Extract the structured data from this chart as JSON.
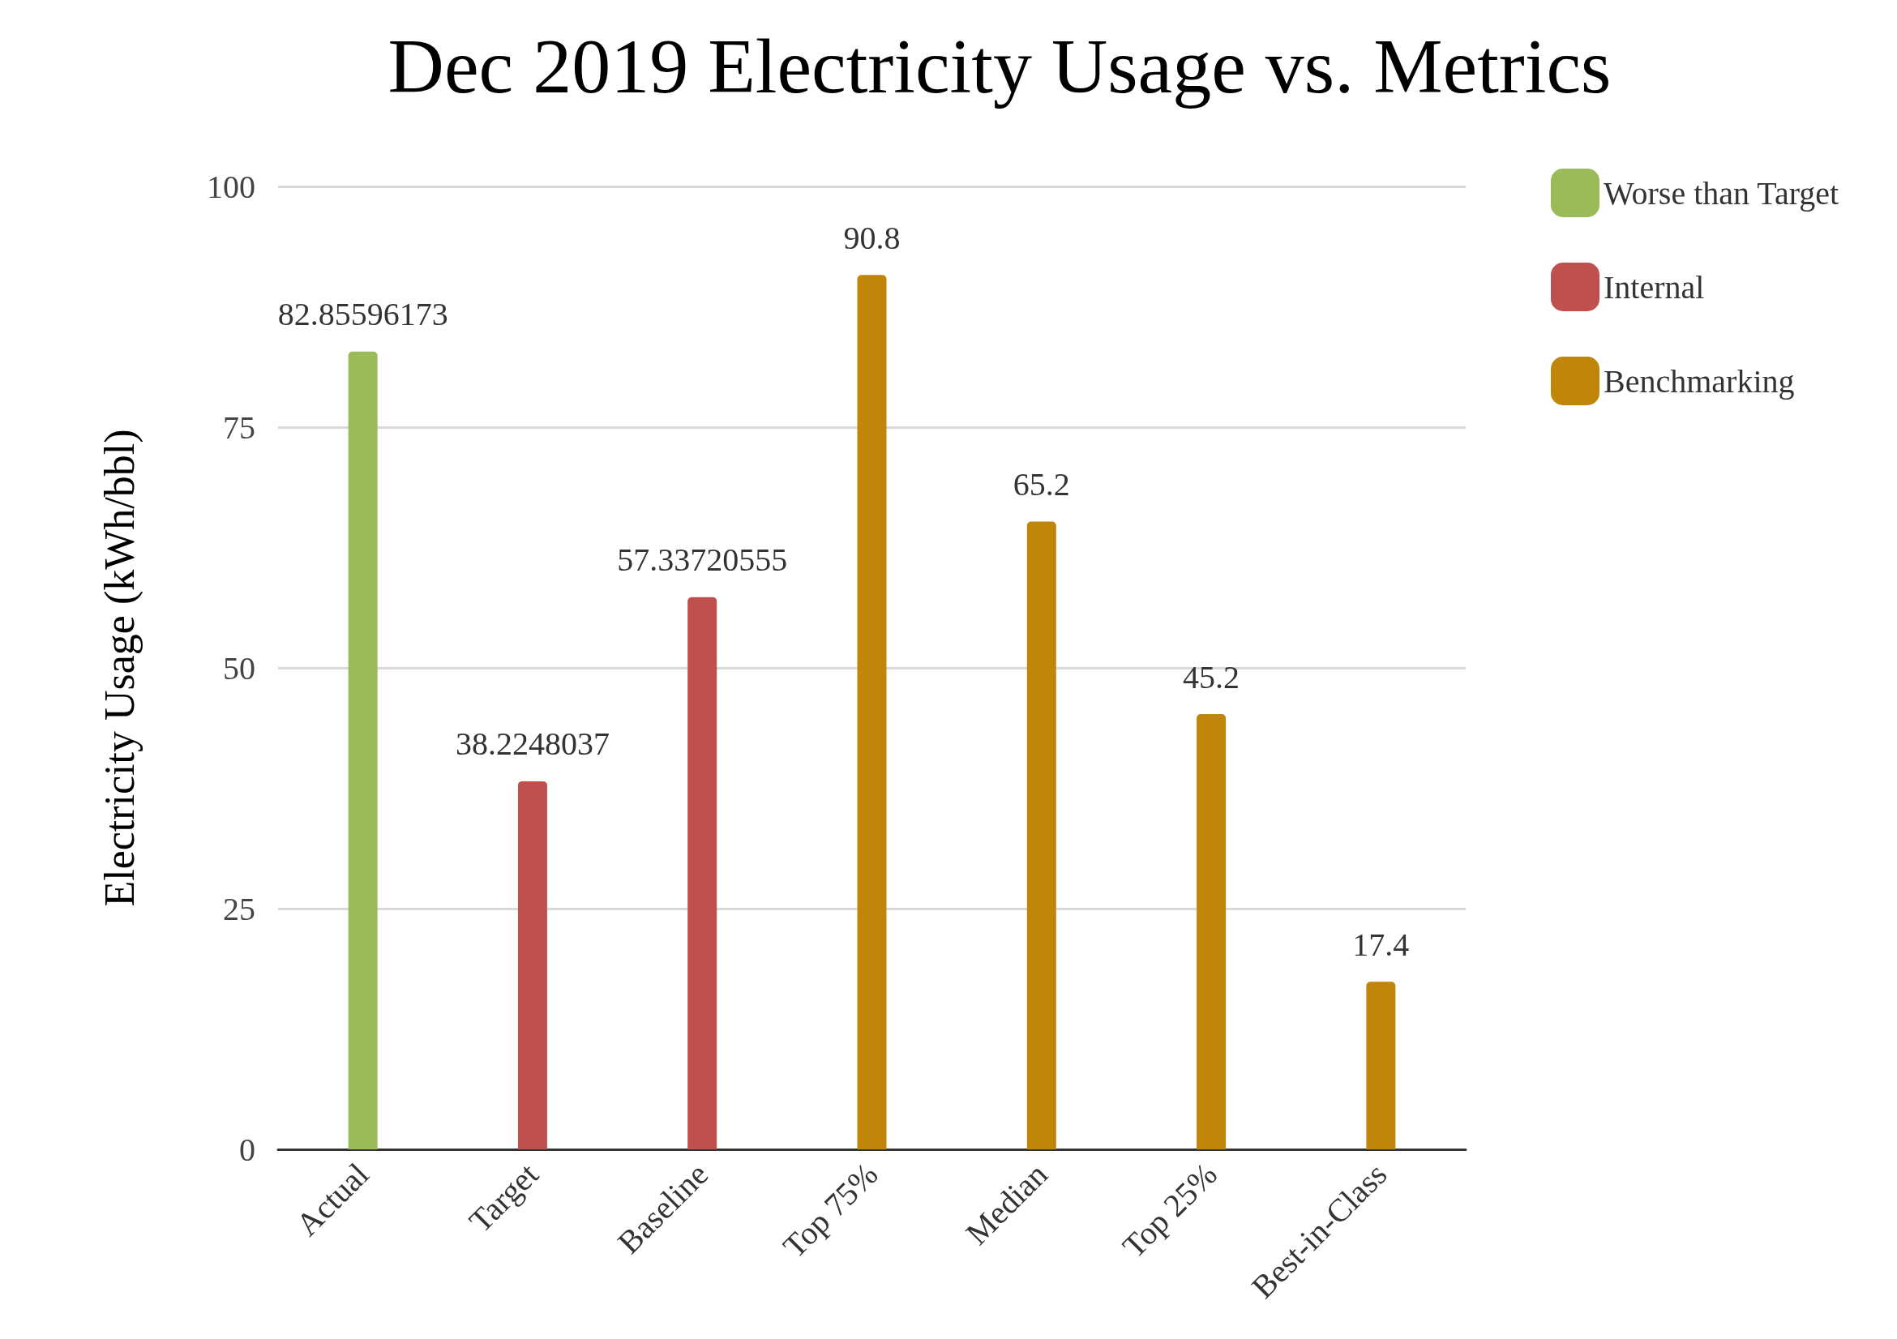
{
  "chart_data": {
    "type": "bar",
    "title": "Dec 2019 Electricity Usage vs. Metrics",
    "ylabel": "Electricity Usage (kWh/bbl)",
    "categories": [
      "Actual",
      "Target",
      "Baseline",
      "Top 75%",
      "Median",
      "Top 25%",
      "Best-in-Class"
    ],
    "series": [
      {
        "name": "Worse than Target",
        "color": "#9bbb59",
        "values": [
          82.85596173,
          null,
          null,
          null,
          null,
          null,
          null
        ]
      },
      {
        "name": "Internal",
        "color": "#c0504d",
        "values": [
          null,
          38.2248037,
          57.33720555,
          null,
          null,
          null,
          null
        ]
      },
      {
        "name": "Benchmarking",
        "color": "#c0860a",
        "values": [
          null,
          null,
          null,
          90.8,
          65.2,
          45.2,
          17.4
        ]
      }
    ],
    "ylim": [
      0,
      100
    ],
    "yticks": [
      0,
      25,
      50,
      75,
      100
    ],
    "grid": "y",
    "legend": "top right",
    "data_labels": true
  }
}
